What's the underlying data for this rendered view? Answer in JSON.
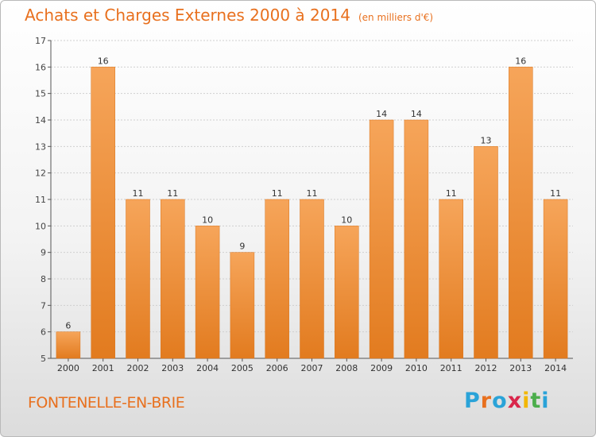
{
  "header": {
    "title": "Achats et Charges Externes 2000 à 2014",
    "unit": "(en milliers d'€)"
  },
  "footer": {
    "place": "FONTENELLE-EN-BRIE",
    "logo": "Proxiti",
    "logo_colors": [
      "#2aa3d8",
      "#e8701e",
      "#2aa3d8",
      "#d9264b",
      "#f2b705",
      "#4cae4c",
      "#2aa3d8"
    ]
  },
  "colors": {
    "accent": "#e8701e",
    "bar_top": "#f6a55a",
    "bar_bottom": "#e27b1f",
    "grid": "#d0d0d0",
    "axis": "#555555"
  },
  "chart_data": {
    "type": "bar",
    "title": "Achats et Charges Externes 2000 à 2014",
    "subtitle": "(en milliers d'€)",
    "categories": [
      "2000",
      "2001",
      "2002",
      "2003",
      "2004",
      "2005",
      "2006",
      "2007",
      "2008",
      "2009",
      "2010",
      "2011",
      "2012",
      "2013",
      "2014"
    ],
    "values": [
      6,
      16,
      11,
      11,
      10,
      9,
      11,
      11,
      10,
      14,
      14,
      11,
      13,
      16,
      11
    ],
    "ylim": [
      5,
      17
    ],
    "yticks": [
      5,
      6,
      7,
      8,
      9,
      10,
      11,
      12,
      13,
      14,
      15,
      16,
      17
    ],
    "grid": true,
    "legend": "none",
    "xlabel": "",
    "ylabel": ""
  }
}
